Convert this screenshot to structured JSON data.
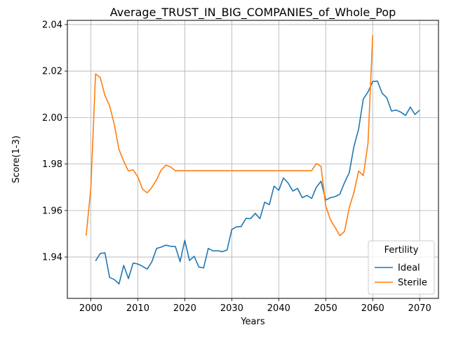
{
  "chart_data": {
    "type": "line",
    "title": "Average_TRUST_IN_BIG_COMPANIES_of_Whole_Pop",
    "xlabel": "Years",
    "ylabel": "Score(1-3)",
    "xlim": [
      1995,
      2074
    ],
    "ylim": [
      1.9222,
      2.0418
    ],
    "xticks": [
      2000,
      2010,
      2020,
      2030,
      2040,
      2050,
      2060,
      2070
    ],
    "yticks": [
      1.94,
      1.96,
      1.98,
      2.0,
      2.02,
      2.04
    ],
    "ytick_labels": [
      "1.94",
      "1.96",
      "1.98",
      "2.00",
      "2.02",
      "2.04"
    ],
    "grid": true,
    "legend": {
      "title": "Fertility",
      "position": "lower right"
    },
    "series": [
      {
        "name": "Ideal",
        "color": "#1f77b4",
        "x": [
          2001,
          2002,
          2003,
          2004,
          2005,
          2006,
          2007,
          2008,
          2009,
          2010,
          2011,
          2012,
          2013,
          2014,
          2015,
          2016,
          2017,
          2018,
          2019,
          2020,
          2021,
          2022,
          2023,
          2024,
          2025,
          2026,
          2027,
          2028,
          2029,
          2030,
          2031,
          2032,
          2033,
          2034,
          2035,
          2036,
          2037,
          2038,
          2039,
          2040,
          2041,
          2042,
          2043,
          2044,
          2045,
          2046,
          2047,
          2048,
          2049,
          2050,
          2051,
          2052,
          2053,
          2054,
          2055,
          2056,
          2057,
          2058,
          2059,
          2060,
          2061,
          2062,
          2063,
          2064,
          2065,
          2066,
          2067,
          2068,
          2069,
          2070
        ],
        "values": [
          1.9383,
          1.9415,
          1.9418,
          1.9312,
          1.9303,
          1.9284,
          1.9364,
          1.9307,
          1.9374,
          1.937,
          1.936,
          1.9348,
          1.938,
          1.9437,
          1.9443,
          1.9451,
          1.9446,
          1.9445,
          1.938,
          1.9472,
          1.9385,
          1.9403,
          1.9357,
          1.9353,
          1.9437,
          1.9426,
          1.9427,
          1.9423,
          1.943,
          1.9518,
          1.953,
          1.9531,
          1.9566,
          1.9565,
          1.9588,
          1.9565,
          1.9636,
          1.9625,
          1.9705,
          1.9687,
          1.974,
          1.9718,
          1.9684,
          1.9695,
          1.9655,
          1.9665,
          1.9652,
          1.97,
          1.9726,
          1.9645,
          1.9655,
          1.966,
          1.967,
          1.972,
          1.9762,
          1.9875,
          1.995,
          2.008,
          2.011,
          2.0155,
          2.0157,
          2.0105,
          2.0085,
          2.0028,
          2.0032,
          2.0023,
          2.0009,
          2.0045,
          2.0013,
          2.0032
        ]
      },
      {
        "name": "Sterile",
        "color": "#ff7f0e",
        "x": [
          1999,
          2000,
          2001,
          2002,
          2003,
          2004,
          2005,
          2006,
          2007,
          2008,
          2009,
          2010,
          2011,
          2012,
          2013,
          2014,
          2015,
          2016,
          2017,
          2018,
          2019,
          2020,
          2021,
          2022,
          2023,
          2024,
          2025,
          2026,
          2027,
          2028,
          2029,
          2030,
          2031,
          2032,
          2033,
          2034,
          2035,
          2036,
          2037,
          2038,
          2039,
          2040,
          2041,
          2042,
          2043,
          2044,
          2045,
          2046,
          2047,
          2048,
          2049,
          2050,
          2051,
          2052,
          2053,
          2054,
          2055,
          2056,
          2057,
          2058,
          2059,
          2060
        ],
        "values": [
          1.9492,
          1.9695,
          2.0188,
          2.0172,
          2.0095,
          2.005,
          1.997,
          1.9862,
          1.9812,
          1.977,
          1.9775,
          1.9745,
          1.9692,
          1.9676,
          1.97,
          1.9733,
          1.9775,
          1.9795,
          1.9787,
          1.9771,
          1.9771,
          1.9771,
          1.9771,
          1.9771,
          1.9771,
          1.9771,
          1.9771,
          1.9771,
          1.9771,
          1.9771,
          1.9771,
          1.9771,
          1.9771,
          1.9771,
          1.9771,
          1.9771,
          1.9771,
          1.9771,
          1.9771,
          1.9771,
          1.9771,
          1.9771,
          1.9771,
          1.9771,
          1.9771,
          1.9771,
          1.9771,
          1.9771,
          1.9771,
          1.9802,
          1.979,
          1.962,
          1.956,
          1.9527,
          1.9492,
          1.951,
          1.9612,
          1.9677,
          1.977,
          1.975,
          1.989,
          2.0355
        ]
      }
    ]
  }
}
